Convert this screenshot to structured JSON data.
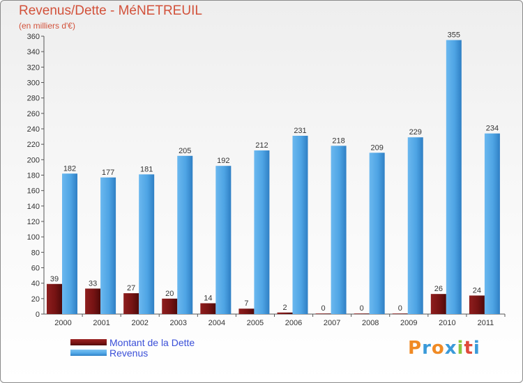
{
  "header": {
    "title": "Revenus/Dette - MéNETREUIL",
    "subtitle": "(en milliers d'€)"
  },
  "legend": {
    "dette_label": "Montant de la Dette",
    "revenus_label": "Revenus"
  },
  "logo": {
    "text": "Proxiti",
    "letters": [
      "P",
      "r",
      "o",
      "x",
      "i",
      "t",
      "i"
    ],
    "colors": [
      "#f08a24",
      "#3a9ad9",
      "#f08a24",
      "#3a9ad9",
      "#8cc63f",
      "#e04a3a",
      "#3a9ad9"
    ]
  },
  "colors": {
    "dette": "#7a1414",
    "revenus": "#4fa6e6",
    "axis": "#555555",
    "grid": "#d8d8d8",
    "title": "#d2513a",
    "legend_text": "#3a4fd8"
  },
  "chart_data": {
    "type": "bar",
    "title": "Revenus/Dette - MéNETREUIL",
    "subtitle": "(en milliers d'€)",
    "xlabel": "",
    "ylabel": "",
    "categories": [
      "2000",
      "2001",
      "2002",
      "2003",
      "2004",
      "2005",
      "2006",
      "2007",
      "2008",
      "2009",
      "2010",
      "2011"
    ],
    "series": [
      {
        "name": "Montant de la Dette",
        "values": [
          39,
          33,
          27,
          20,
          14,
          7,
          2,
          0,
          0,
          0,
          26,
          24
        ]
      },
      {
        "name": "Revenus",
        "values": [
          182,
          177,
          181,
          205,
          192,
          212,
          231,
          218,
          209,
          229,
          355,
          234
        ]
      }
    ],
    "ylim": [
      0,
      360
    ],
    "yticks": [
      0,
      20,
      40,
      60,
      80,
      100,
      120,
      140,
      160,
      180,
      200,
      220,
      240,
      260,
      280,
      300,
      320,
      340,
      360
    ],
    "grid": false,
    "legend_position": "bottom-left"
  }
}
